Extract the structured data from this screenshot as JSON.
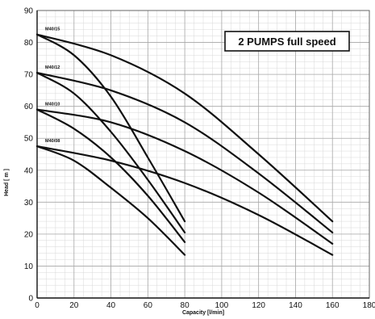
{
  "chart_data": {
    "type": "line",
    "title": "",
    "xlabel": "Capacity [l/min]",
    "ylabel": "Head [ m ]",
    "xlim": [
      0,
      180
    ],
    "ylim": [
      0,
      90
    ],
    "xticks": [
      0,
      20,
      40,
      60,
      80,
      100,
      120,
      140,
      160,
      180
    ],
    "yticks": [
      0,
      10,
      20,
      30,
      40,
      50,
      60,
      70,
      80,
      90
    ],
    "x_minor_step": 5,
    "y_minor_step": 2,
    "grid": true,
    "annotation": "2 PUMPS full speed",
    "annotation_position": "top-right",
    "line_color": "#111111",
    "series": [
      {
        "name": "M40/15",
        "points": [
          [
            0,
            82.5
          ],
          [
            20,
            76
          ],
          [
            40,
            63
          ],
          [
            60,
            44
          ],
          [
            80,
            24
          ]
        ]
      },
      {
        "name": "M40/15",
        "points": [
          [
            0,
            82.5
          ],
          [
            40,
            76
          ],
          [
            80,
            64
          ],
          [
            120,
            45
          ],
          [
            160,
            24
          ]
        ]
      },
      {
        "name": "M40/12",
        "points": [
          [
            0,
            70.5
          ],
          [
            20,
            64
          ],
          [
            40,
            52
          ],
          [
            60,
            37
          ],
          [
            80,
            20.5
          ]
        ]
      },
      {
        "name": "M40/12",
        "points": [
          [
            0,
            70.5
          ],
          [
            40,
            65
          ],
          [
            80,
            55
          ],
          [
            120,
            39
          ],
          [
            160,
            20.5
          ]
        ]
      },
      {
        "name": "M40/10",
        "points": [
          [
            0,
            59
          ],
          [
            20,
            53
          ],
          [
            40,
            44
          ],
          [
            60,
            32
          ],
          [
            80,
            17.5
          ]
        ]
      },
      {
        "name": "M40/10",
        "points": [
          [
            0,
            59
          ],
          [
            40,
            55
          ],
          [
            80,
            46
          ],
          [
            120,
            33
          ],
          [
            160,
            17
          ]
        ]
      },
      {
        "name": "M40/08",
        "points": [
          [
            0,
            47.5
          ],
          [
            20,
            43
          ],
          [
            40,
            34.5
          ],
          [
            60,
            25
          ],
          [
            80,
            13.5
          ]
        ]
      },
      {
        "name": "M40/08",
        "points": [
          [
            0,
            47.5
          ],
          [
            40,
            43
          ],
          [
            80,
            36
          ],
          [
            120,
            26
          ],
          [
            160,
            13.5
          ]
        ]
      }
    ]
  }
}
